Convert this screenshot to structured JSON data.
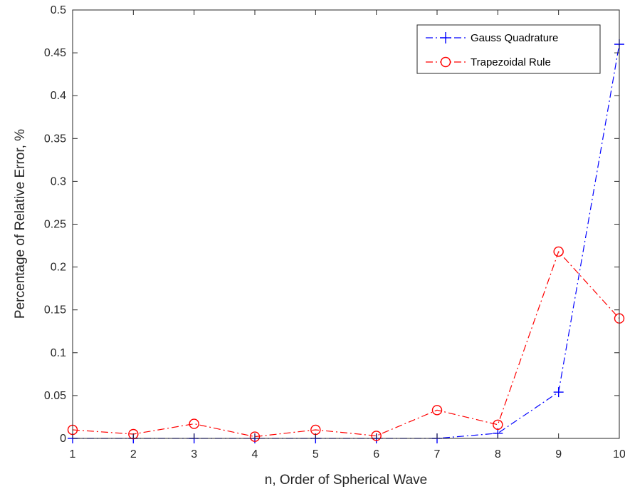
{
  "chart_data": {
    "type": "line",
    "title": "",
    "xlabel": "n, Order of Spherical Wave",
    "ylabel": "Percentage of Relative Error, %",
    "xlim": [
      1,
      10
    ],
    "ylim": [
      0,
      0.5
    ],
    "xticks": [
      1,
      2,
      3,
      4,
      5,
      6,
      7,
      8,
      9,
      10
    ],
    "yticks": [
      0,
      0.05,
      0.1,
      0.15,
      0.2,
      0.25,
      0.3,
      0.35,
      0.4,
      0.45,
      0.5
    ],
    "xtick_labels": [
      "1",
      "2",
      "3",
      "4",
      "5",
      "6",
      "7",
      "8",
      "9",
      "10"
    ],
    "ytick_labels": [
      "0",
      "0.05",
      "0.1",
      "0.15",
      "0.2",
      "0.25",
      "0.3",
      "0.35",
      "0.4",
      "0.45",
      "0.5"
    ],
    "grid": false,
    "legend_position": "top-right",
    "x": [
      1,
      2,
      3,
      4,
      5,
      6,
      7,
      8,
      9,
      10
    ],
    "series": [
      {
        "name": "Gauss Quadrature",
        "values": [
          0.0,
          0.0,
          0.0,
          0.0,
          0.0,
          0.0,
          0.0,
          0.006,
          0.054,
          0.46
        ],
        "color": "#0000ff",
        "marker": "plus",
        "line_style": "dash-dot"
      },
      {
        "name": "Trapezoidal Rule",
        "values": [
          0.01,
          0.005,
          0.017,
          0.002,
          0.01,
          0.003,
          0.033,
          0.016,
          0.218,
          0.14
        ],
        "color": "#ff0000",
        "marker": "circle",
        "line_style": "dash-dot"
      }
    ]
  }
}
